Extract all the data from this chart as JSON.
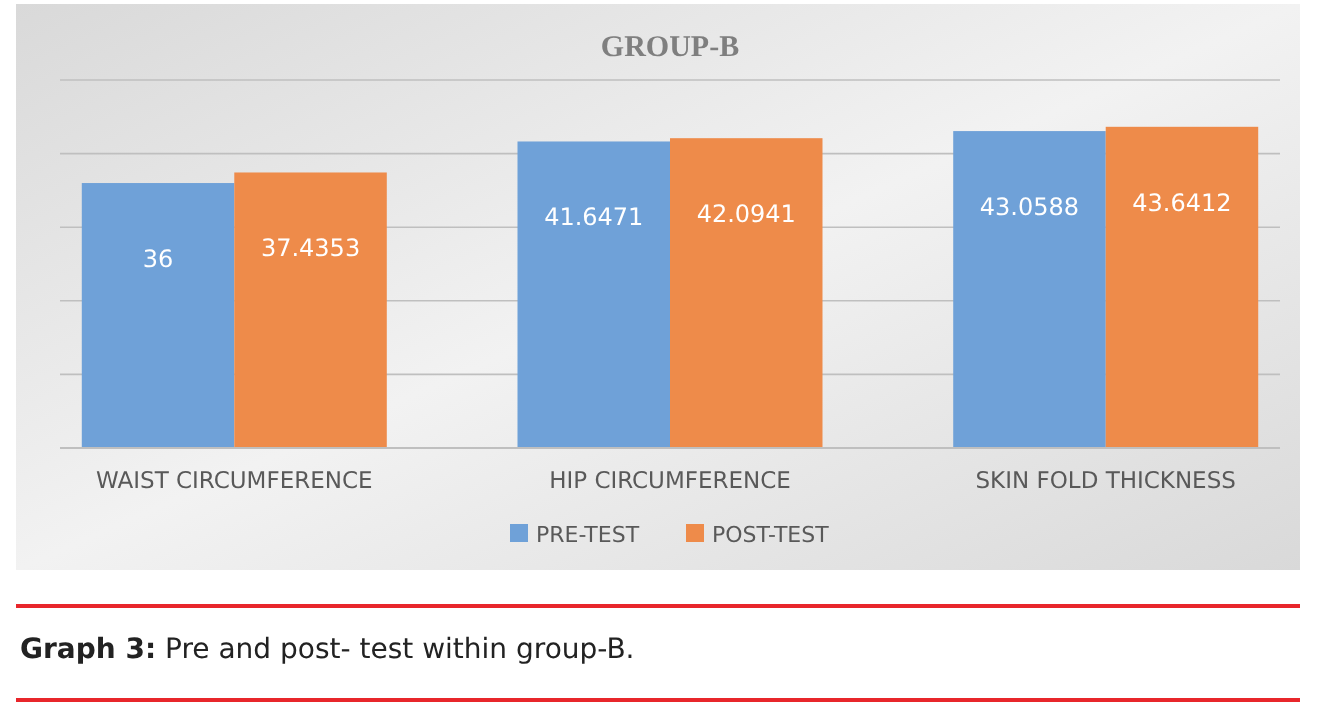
{
  "chart_data": {
    "type": "bar",
    "title": "GROUP-B",
    "categories": [
      "WAIST CIRCUMFERENCE",
      "HIP CIRCUMFERENCE",
      "SKIN FOLD THICKNESS"
    ],
    "series": [
      {
        "name": "PRE-TEST",
        "color": "#6fa1d8",
        "values": [
          36,
          41.6471,
          43.0588
        ]
      },
      {
        "name": "POST-TEST",
        "color": "#ee8b4a",
        "values": [
          37.4353,
          42.0941,
          43.6412
        ]
      }
    ],
    "ylim": [
      0,
      50
    ],
    "yticks": [
      {
        "value": 0,
        "label": null
      },
      {
        "value": 10,
        "label": null
      },
      {
        "value": 20,
        "label": null
      },
      {
        "value": 30,
        "label": null
      },
      {
        "value": 40,
        "label": null
      },
      {
        "value": 50,
        "label": null
      }
    ],
    "tick_labels": "x",
    "grid": "y",
    "data_labels": true,
    "legend": "bottom",
    "annotations": [
      "Graph 3: Pre and post- test within group-B."
    ]
  }
}
